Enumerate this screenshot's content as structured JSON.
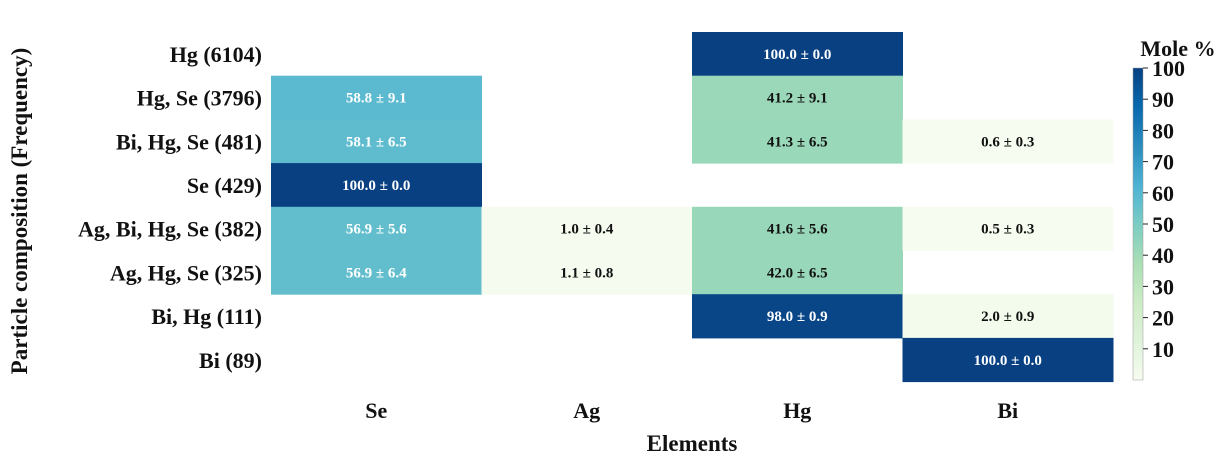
{
  "chart_data": {
    "type": "heatmap",
    "title": "",
    "xlabel": "Elements",
    "ylabel": "Particle composition (Frequency)",
    "x_categories": [
      "Se",
      "Ag",
      "Hg",
      "Bi"
    ],
    "y_categories": [
      "Hg (6104)",
      "Hg, Se (3796)",
      "Bi, Hg, Se (481)",
      "Se (429)",
      "Ag, Bi, Hg, Se (382)",
      "Ag, Hg, Se (325)",
      "Bi, Hg (111)",
      "Bi (89)"
    ],
    "values": [
      [
        null,
        null,
        100.0,
        null
      ],
      [
        58.8,
        null,
        41.2,
        null
      ],
      [
        58.1,
        null,
        41.3,
        0.6
      ],
      [
        100.0,
        null,
        null,
        null
      ],
      [
        56.9,
        1.0,
        41.6,
        0.5
      ],
      [
        56.9,
        1.1,
        42.0,
        null
      ],
      [
        null,
        null,
        98.0,
        2.0
      ],
      [
        null,
        null,
        null,
        100.0
      ]
    ],
    "labels": [
      [
        null,
        null,
        "100.0 ± 0.0",
        null
      ],
      [
        "58.8 ± 9.1",
        null,
        "41.2 ± 9.1",
        null
      ],
      [
        "58.1 ± 6.5",
        null,
        "41.3 ± 6.5",
        "0.6 ± 0.3"
      ],
      [
        "100.0 ± 0.0",
        null,
        null,
        null
      ],
      [
        "56.9 ± 5.6",
        "1.0 ± 0.4",
        "41.6 ± 5.6",
        "0.5 ± 0.3"
      ],
      [
        "56.9 ± 6.4",
        "1.1 ± 0.8",
        "42.0 ± 6.5",
        null
      ],
      [
        null,
        null,
        "98.0 ± 0.9",
        "2.0 ± 0.9"
      ],
      [
        null,
        null,
        null,
        "100.0 ± 0.0"
      ]
    ],
    "colorbar": {
      "title": "Mole %",
      "range": [
        0,
        100
      ],
      "ticks": [
        "10",
        "20",
        "30",
        "40",
        "50",
        "60",
        "70",
        "80",
        "90",
        "100"
      ],
      "colormap": "GnBu"
    },
    "colors": {
      "low": "#f7fcf0",
      "mid_low": "#ccebc5",
      "mid": "#7bccc4",
      "mid_high": "#2b8cbe",
      "high": "#0b4a8e",
      "text_dark": "#111111",
      "text_light": "#ffffff"
    }
  }
}
